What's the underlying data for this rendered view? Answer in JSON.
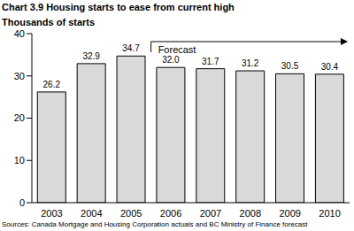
{
  "chart_data": {
    "type": "bar",
    "title": "Chart 3.9 Housing starts to ease from current high",
    "y_label": "Thousands of starts",
    "categories": [
      "2003",
      "2004",
      "2005",
      "2006",
      "2007",
      "2008",
      "2009",
      "2010"
    ],
    "values": [
      26.2,
      32.9,
      34.7,
      32.0,
      31.7,
      31.2,
      30.5,
      30.4
    ],
    "value_labels": [
      "26.2",
      "32.9",
      "34.7",
      "32.0",
      "31.7",
      "31.2",
      "30.5",
      "30.4"
    ],
    "color": "#d9d9d9",
    "ylim": [
      0,
      40
    ],
    "yticks": [
      0,
      10,
      20,
      30,
      40
    ],
    "grid": false,
    "data_labels": true,
    "annotations": [
      "Forecast"
    ],
    "source": "Sources: Canada Mortgage and Housing Corporation actuals and BC Ministry of Finance forecast"
  }
}
